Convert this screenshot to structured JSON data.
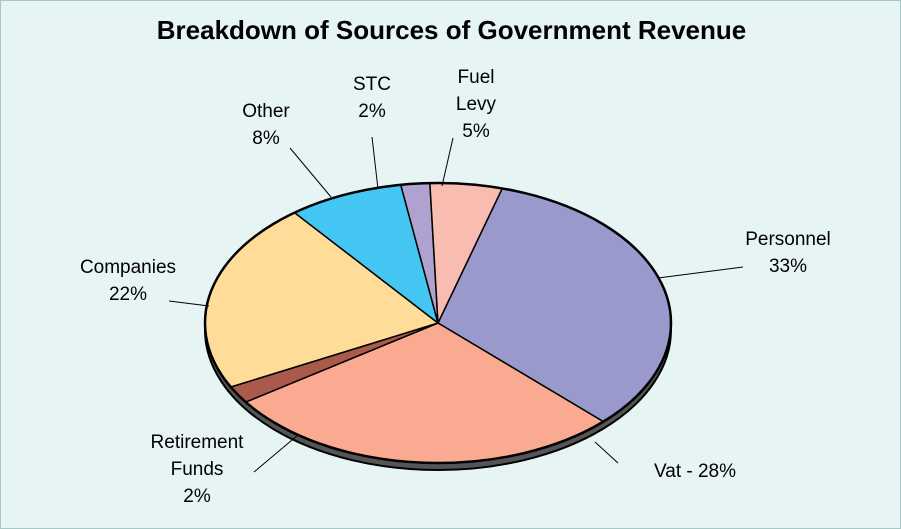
{
  "chart_data": {
    "type": "pie",
    "title": "Breakdown of Sources of Government Revenue",
    "slices": [
      {
        "label": "Personnel 33%",
        "label_lines": [
          "Personnel",
          "33%"
        ],
        "value": 33,
        "color": "#9999cc"
      },
      {
        "label": "Vat - 28%",
        "label_lines": [
          "Vat - 28%"
        ],
        "value": 28,
        "color": "#f9aa90"
      },
      {
        "label": "Retirement Funds 2%",
        "label_lines": [
          "Retirement",
          "Funds",
          "2%"
        ],
        "value": 2,
        "color": "#aa5a4a"
      },
      {
        "label": "Companies 22%",
        "label_lines": [
          "Companies",
          "22%"
        ],
        "value": 22,
        "color": "#ffdd99"
      },
      {
        "label": "Other 8%",
        "label_lines": [
          "Other",
          "8%"
        ],
        "value": 8,
        "color": "#44c6f2"
      },
      {
        "label": "STC 2%",
        "label_lines": [
          "STC",
          "2%"
        ],
        "value": 2,
        "color": "#b0a2d0"
      },
      {
        "label": "Fuel Levy 5%",
        "label_lines": [
          "Fuel",
          "Levy",
          "5%"
        ],
        "value": 5,
        "color": "#f9bcb0"
      }
    ],
    "legend": "none",
    "grid": false
  }
}
